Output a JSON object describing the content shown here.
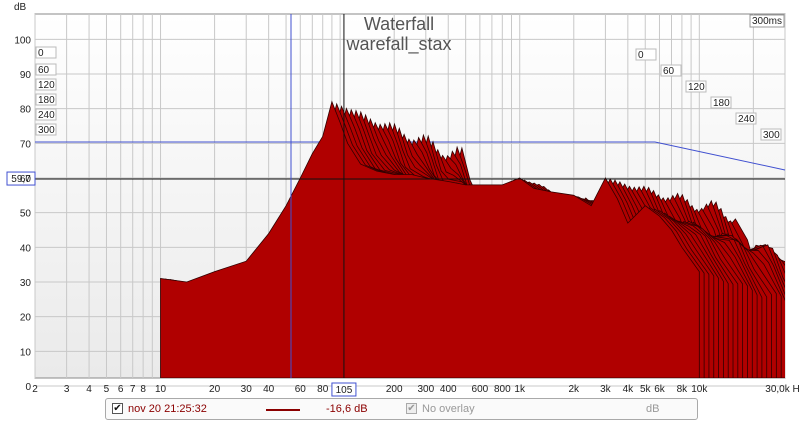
{
  "chart_data": {
    "type": "waterfall",
    "title": "Waterfall",
    "subtitle": "warefall_stax",
    "ylabel": "dB",
    "xunit": "Hz",
    "ylim": [
      0,
      105
    ],
    "xlim": [
      2,
      30000
    ],
    "xscale": "log",
    "y_ticks": [
      "0",
      "10",
      "20",
      "30",
      "40",
      "50",
      "60",
      "70",
      "80",
      "90",
      "100"
    ],
    "x_ticks": [
      {
        "v": 2,
        "label": "2"
      },
      {
        "v": 3,
        "label": "3"
      },
      {
        "v": 4,
        "label": "4"
      },
      {
        "v": 5,
        "label": "5"
      },
      {
        "v": 6,
        "label": "6"
      },
      {
        "v": 7,
        "label": "7"
      },
      {
        "v": 8,
        "label": "8"
      },
      {
        "v": 10,
        "label": "10"
      },
      {
        "v": 20,
        "label": "20"
      },
      {
        "v": 30,
        "label": "30"
      },
      {
        "v": 40,
        "label": "40"
      },
      {
        "v": 60,
        "label": "60"
      },
      {
        "v": 80,
        "label": "80"
      },
      {
        "v": 200,
        "label": "200"
      },
      {
        "v": 300,
        "label": "300"
      },
      {
        "v": 400,
        "label": "400"
      },
      {
        "v": 600,
        "label": "600"
      },
      {
        "v": 800,
        "label": "800"
      },
      {
        "v": 1000,
        "label": "1k"
      },
      {
        "v": 2000,
        "label": "2k"
      },
      {
        "v": 3000,
        "label": "3k"
      },
      {
        "v": 4000,
        "label": "4k"
      },
      {
        "v": 5000,
        "label": "5k"
      },
      {
        "v": 6000,
        "label": "6k"
      },
      {
        "v": 8000,
        "label": "8k"
      },
      {
        "v": 10000,
        "label": "10k"
      },
      {
        "v": 30000,
        "label": "30,0k Hz"
      }
    ],
    "time_slices_ms": [
      "0",
      "60",
      "120",
      "180",
      "240",
      "300"
    ],
    "time_range_label": "300ms",
    "cursor": {
      "x_hz": 105,
      "x_label": "105",
      "y_db": 59.7,
      "y_label": "59,7"
    },
    "front_response": {
      "freq_hz": [
        10,
        14,
        20,
        30,
        40,
        50,
        60,
        70,
        80,
        90,
        100,
        110,
        130,
        160,
        200,
        250,
        300,
        400,
        500,
        600,
        800,
        1000,
        1200,
        1500,
        2000,
        2500,
        3000,
        3500,
        4000,
        5000,
        6000,
        7000,
        8000,
        10000
      ],
      "db": [
        31,
        30,
        33,
        36,
        44,
        52,
        60,
        67,
        72,
        82,
        76,
        70,
        64,
        62,
        61,
        61,
        60,
        59,
        58,
        58,
        58,
        60,
        57,
        56,
        55,
        52,
        60,
        54,
        47,
        52,
        49,
        45,
        40,
        33
      ]
    },
    "series": [
      {
        "name": "nov 20 21:25:32",
        "value_label": "-16,6 dB",
        "color": "#8b0000",
        "checked": true
      }
    ]
  },
  "legend": {
    "entry_label": "nov 20 21:25:32",
    "value": "-16,6 dB",
    "overlay_label": "No overlay",
    "overlay_unit": "dB",
    "check_glyph": "✔"
  },
  "colors": {
    "fill": "#b00000",
    "edge": "#300000",
    "grid": "#c8c8c8",
    "cursor": "#4050d0",
    "plot_bg": "#f2f2f2"
  }
}
